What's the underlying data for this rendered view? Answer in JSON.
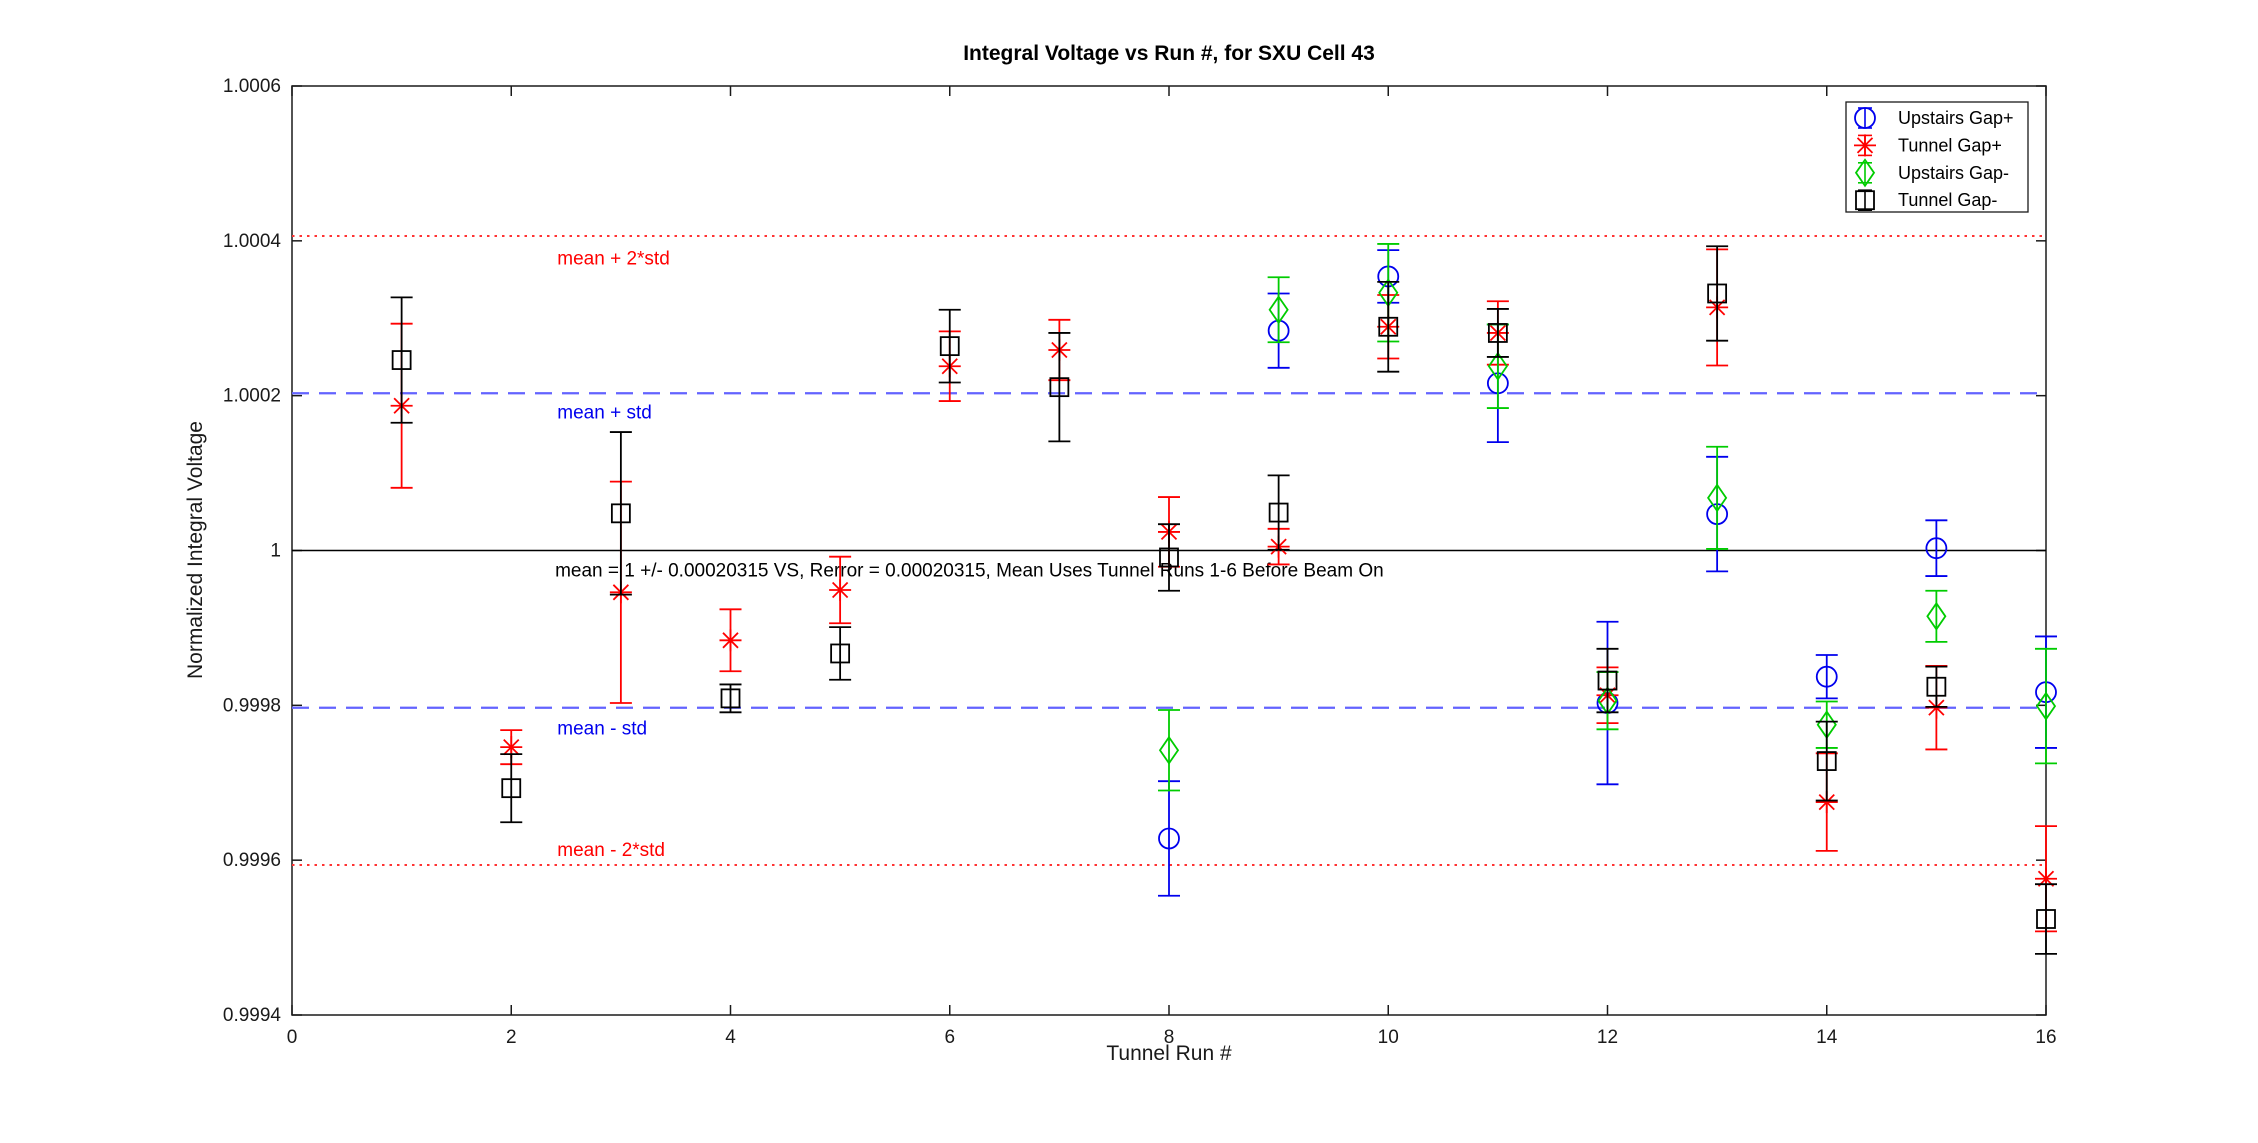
{
  "chart_data": {
    "type": "scatter",
    "title": "Integral Voltage vs Run #, for SXU Cell 43",
    "xlabel": "Tunnel Run #",
    "ylabel": "Normalized Integral Voltage",
    "xlim": [
      0,
      16
    ],
    "ylim": [
      0.9994,
      1.0006
    ],
    "grid": false,
    "xticks": [
      0,
      2,
      4,
      6,
      8,
      10,
      12,
      14,
      16
    ],
    "xtick_labels": [
      "0",
      "2",
      "4",
      "6",
      "8",
      "10",
      "12",
      "14",
      "16"
    ],
    "yticks": [
      1.0006,
      1.0004,
      1.0002,
      1.0,
      0.9998,
      0.9996,
      0.9994
    ],
    "ytick_labels": [
      "1.0006",
      "1.0004",
      "1.0002",
      "1",
      "0.9998",
      "0.9996",
      "0.9994"
    ],
    "series": [
      {
        "name": "Upstairs Gap+",
        "marker": "circle",
        "color": "#0000EE",
        "x": [
          8,
          9,
          10,
          11,
          12,
          13,
          14,
          15,
          16
        ],
        "values": [
          0.999628,
          1.000284,
          1.000354,
          1.000216,
          0.999803,
          1.000047,
          0.999837,
          1.000003,
          0.999817
        ],
        "errors": [
          7.4e-05,
          4.8e-05,
          3.4e-05,
          7.6e-05,
          0.000105,
          7.4e-05,
          2.8e-05,
          3.6e-05,
          7.2e-05
        ]
      },
      {
        "name": "Tunnel Gap+",
        "marker": "asterisk",
        "color": "#FF0000",
        "x": [
          1,
          2,
          3,
          4,
          5,
          6,
          7,
          8,
          9,
          10,
          11,
          12,
          13,
          14,
          15,
          16
        ],
        "values": [
          1.000187,
          0.999746,
          0.999946,
          0.999884,
          0.999949,
          1.000238,
          1.000259,
          1.000024,
          1.000005,
          1.000289,
          1.000281,
          0.999813,
          1.000314,
          0.999675,
          0.999797,
          0.999576
        ],
        "errors": [
          0.000106,
          2.2e-05,
          0.000143,
          4e-05,
          4.3e-05,
          4.5e-05,
          3.9e-05,
          4.5e-05,
          2.3e-05,
          4.1e-05,
          4.1e-05,
          3.6e-05,
          7.5e-05,
          6.3e-05,
          5.4e-05,
          6.8e-05
        ]
      },
      {
        "name": "Upstairs Gap-",
        "marker": "diamond",
        "color": "#00CC00",
        "x": [
          8,
          9,
          10,
          11,
          12,
          13,
          14,
          15,
          16
        ],
        "values": [
          0.999742,
          1.000311,
          1.000333,
          1.000238,
          0.999806,
          1.000068,
          0.999775,
          0.999915,
          0.999799
        ],
        "errors": [
          5.2e-05,
          4.2e-05,
          6.3e-05,
          5.4e-05,
          3.7e-05,
          6.6e-05,
          3e-05,
          3.3e-05,
          7.4e-05
        ]
      },
      {
        "name": "Tunnel Gap-",
        "marker": "square",
        "color": "#000000",
        "x": [
          1,
          2,
          3,
          4,
          5,
          6,
          7,
          8,
          9,
          10,
          11,
          12,
          13,
          14,
          15,
          16
        ],
        "values": [
          1.000246,
          0.999693,
          1.000048,
          0.999809,
          0.999867,
          1.000264,
          1.000211,
          0.999991,
          1.000049,
          1.000289,
          1.000281,
          0.999832,
          1.000332,
          0.999728,
          0.999824,
          0.999524
        ],
        "errors": [
          8.1e-05,
          4.4e-05,
          0.000105,
          1.8e-05,
          3.4e-05,
          4.7e-05,
          7e-05,
          4.3e-05,
          4.8e-05,
          5.8e-05,
          3.1e-05,
          4.1e-05,
          6.1e-05,
          5.1e-05,
          2.6e-05,
          4.5e-05
        ]
      }
    ],
    "reference_lines": [
      {
        "label": "mean + 2*std",
        "value": 1.0004063,
        "style": "dotted",
        "color": "#FF3333"
      },
      {
        "label": "mean + std",
        "value": 1.00020315,
        "style": "dashed",
        "color": "#6363FF"
      },
      {
        "label": "mean",
        "value": 1.0,
        "style": "solid",
        "color": "#000000"
      },
      {
        "label": "mean - std",
        "value": 0.99979685,
        "style": "dashed",
        "color": "#6363FF"
      },
      {
        "label": "mean - 2*std",
        "value": 0.9995937,
        "style": "dotted",
        "color": "#FF3333"
      }
    ],
    "annotations": [
      {
        "text": "mean + 2*std",
        "color": "#FF0000",
        "x": 2.42,
        "y": 1.000378
      },
      {
        "text": "mean + std",
        "color": "#0000EE",
        "x": 2.42,
        "y": 1.000179
      },
      {
        "text": "mean = 1 +/- 0.00020315 VS, Rerror = 0.00020315, Mean Uses Tunnel Runs 1-6 Before Beam On",
        "color": "#000000",
        "x": 2.4,
        "y": 0.999975
      },
      {
        "text": "mean - std",
        "color": "#0000EE",
        "x": 2.42,
        "y": 0.999771
      },
      {
        "text": "mean - 2*std",
        "color": "#FF0000",
        "x": 2.42,
        "y": 0.999614
      }
    ],
    "legend": {
      "position": "top-right",
      "entries": [
        "Upstairs Gap+",
        "Tunnel Gap+",
        "Upstairs Gap-",
        "Tunnel Gap-"
      ]
    }
  }
}
